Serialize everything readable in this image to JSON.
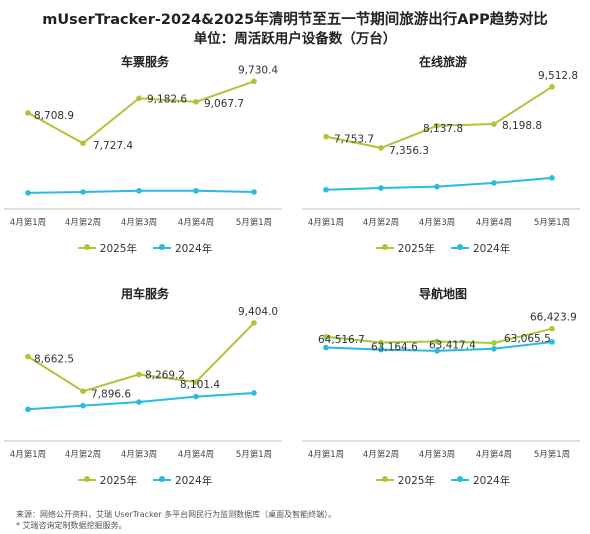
{
  "title": "mUserTracker-2024&2025年清明节至五一节期间旅游出行APP趋势对比",
  "subtitle": "单位：周活跃用户设备数（万台）",
  "colors": {
    "y2025": "#a6c93a",
    "y2024": "#2bbbe0",
    "axis": "#bfbfbf"
  },
  "chart_data": [
    {
      "type": "line",
      "title": "车票服务",
      "categories": [
        "4月第1周",
        "4月第2周",
        "4月第3周",
        "4月第4周",
        "5月第1周"
      ],
      "series": [
        {
          "name": "2025年",
          "values": [
            8708.9,
            7727.4,
            9182.6,
            9067.7,
            9730.4
          ],
          "labels": [
            "8,708.9",
            "7,727.4",
            "9,182.6",
            "9,067.7",
            "9,730.4"
          ]
        },
        {
          "name": "2024年",
          "values": [
            6120,
            6150,
            6190,
            6190,
            6150
          ]
        }
      ],
      "ylim": [
        5600,
        10000
      ],
      "legend": "bottom"
    },
    {
      "type": "line",
      "title": "在线旅游",
      "categories": [
        "4月第1周",
        "4月第2周",
        "4月第3周",
        "4月第4周",
        "5月第1周"
      ],
      "series": [
        {
          "name": "2025年",
          "values": [
            7753.7,
            7356.3,
            8137.8,
            8198.8,
            9512.8
          ],
          "labels": [
            "7,753.7",
            "7,356.3",
            "8,137.8",
            "8,198.8",
            "9,512.8"
          ]
        },
        {
          "name": "2024年",
          "values": [
            5880,
            5940,
            5990,
            6120,
            6300
          ]
        }
      ],
      "ylim": [
        5200,
        10000
      ],
      "legend": "bottom"
    },
    {
      "type": "line",
      "title": "用车服务",
      "categories": [
        "4月第1周",
        "4月第2周",
        "4月第3周",
        "4月第4周",
        "5月第1周"
      ],
      "series": [
        {
          "name": "2025年",
          "values": [
            8662.5,
            7896.6,
            8269.2,
            8101.4,
            9404.0
          ],
          "labels": [
            "8,662.5",
            "7,896.6",
            "8,269.2",
            "8,101.4",
            "9,404.0"
          ]
        },
        {
          "name": "2024年",
          "values": [
            7500,
            7580,
            7660,
            7780,
            7860
          ]
        }
      ],
      "ylim": [
        6800,
        9800
      ],
      "legend": "bottom"
    },
    {
      "type": "line",
      "title": "导航地图",
      "categories": [
        "4月第1周",
        "4月第2周",
        "4月第3周",
        "4月第4周",
        "5月第1周"
      ],
      "series": [
        {
          "name": "2025年",
          "values": [
            64516.7,
            63164.6,
            63417.4,
            63065.5,
            66423.9
          ],
          "labels": [
            "64,516.7",
            "63,164.6",
            "63,417.4",
            "63,065.5",
            "66,423.9"
          ]
        },
        {
          "name": "2024年",
          "values": [
            62000,
            61500,
            61200,
            61700,
            63300
          ]
        }
      ],
      "ylim": [
        40000,
        72000
      ],
      "legend": "bottom"
    }
  ],
  "footer": {
    "line1": "来源：网络公开资料，艾瑞 UserTracker 多平台网民行为监测数据库（桌面及智能终端）。",
    "line2": "* 艾瑞咨询定制数据挖掘服务。"
  }
}
